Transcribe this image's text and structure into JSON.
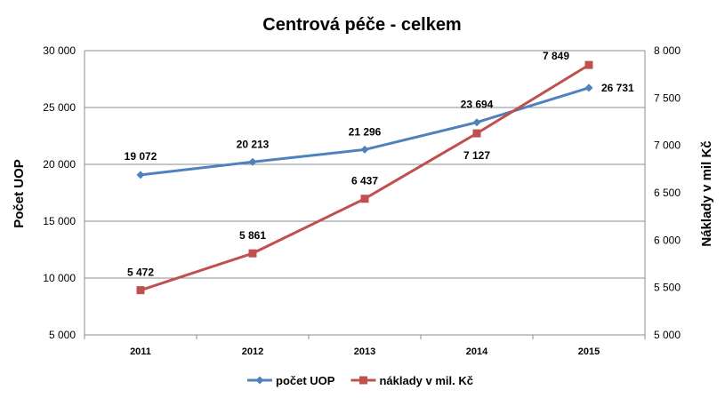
{
  "chart_data": {
    "type": "line",
    "title": "Centrová péče - celkem",
    "categories": [
      "2011",
      "2012",
      "2013",
      "2014",
      "2015"
    ],
    "y_left": {
      "label": "Počet UOP",
      "range": [
        5000,
        30000
      ],
      "ticks": [
        5000,
        10000,
        15000,
        20000,
        25000,
        30000
      ],
      "tick_labels": [
        "5 000",
        "10 000",
        "15 000",
        "20 000",
        "25 000",
        "30 000"
      ]
    },
    "y_right": {
      "label": "Náklady  v mil Kč",
      "range": [
        5000,
        8000
      ],
      "ticks": [
        5000,
        5500,
        6000,
        6500,
        7000,
        7500,
        8000
      ],
      "tick_labels": [
        "5 000",
        "5 500",
        "6 000",
        "6 500",
        "7 000",
        "7 500",
        "8 000"
      ]
    },
    "grid": true,
    "legend_position": "bottom",
    "series": [
      {
        "name": "počet UOP",
        "axis": "left",
        "color": "#4F81BD",
        "marker": "diamond",
        "values": [
          19072,
          20213,
          21296,
          23694,
          26731
        ],
        "labels": [
          "19 072",
          "20 213",
          "21 296",
          "23 694",
          "26 731"
        ]
      },
      {
        "name": "náklady v mil. Kč",
        "axis": "right",
        "color": "#C0504D",
        "marker": "square",
        "values": [
          5472,
          5861,
          6437,
          7127,
          7849
        ],
        "labels": [
          "5 472",
          "5 861",
          "6 437",
          "7 127",
          "7 849"
        ]
      }
    ]
  }
}
